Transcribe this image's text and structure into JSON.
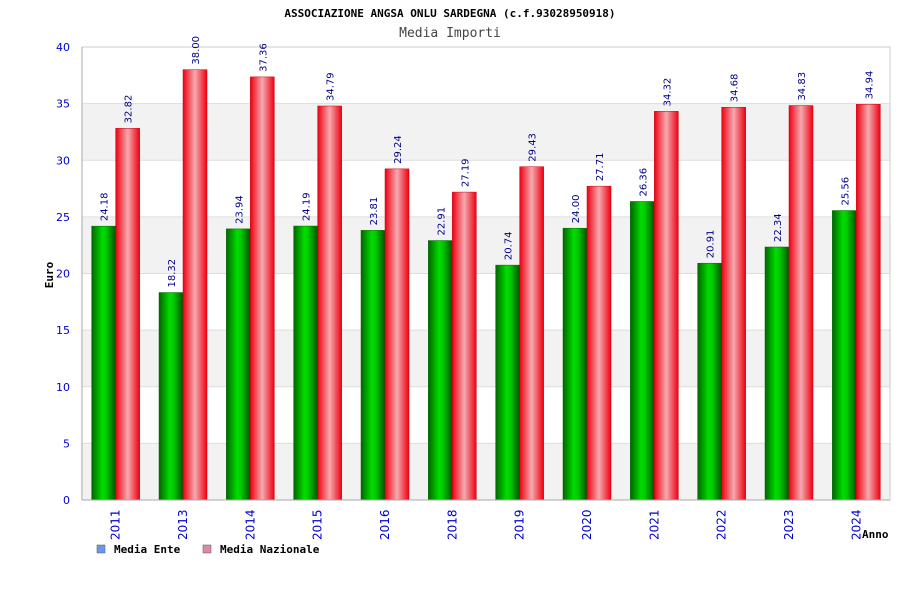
{
  "chart_data": {
    "type": "bar",
    "title": "ASSOCIAZIONE ANGSA ONLU SARDEGNA (c.f.93028950918)",
    "subtitle": "Media Importi",
    "xlabel": "Anno",
    "ylabel": "Euro",
    "ylim": [
      0,
      40
    ],
    "yticks": [
      "0",
      "5",
      "10",
      "15",
      "20",
      "25",
      "30",
      "35",
      "40"
    ],
    "grid": true,
    "legend_position": "bottom-left",
    "categories": [
      "2011",
      "2013",
      "2014",
      "2015",
      "2016",
      "2018",
      "2019",
      "2020",
      "2021",
      "2022",
      "2023",
      "2024"
    ],
    "series": [
      {
        "name": "Media Ente",
        "color": "#00a000",
        "legend_color": "#6699ee",
        "values": [
          24.18,
          18.32,
          23.94,
          24.19,
          23.81,
          22.91,
          20.74,
          24.0,
          26.36,
          20.91,
          22.34,
          25.56
        ],
        "labels": [
          "24.18",
          "18.32",
          "23.94",
          "24.19",
          "23.81",
          "22.91",
          "20.74",
          "24.00",
          "26.36",
          "20.91",
          "22.34",
          "25.56"
        ]
      },
      {
        "name": "Media Nazionale",
        "color": "#ee1122",
        "legend_color": "#dd88aa",
        "values": [
          32.82,
          38.0,
          37.36,
          34.79,
          29.24,
          27.19,
          29.43,
          27.71,
          34.32,
          34.68,
          34.83,
          34.94
        ],
        "labels": [
          "32.82",
          "38.00",
          "37.36",
          "34.79",
          "29.24",
          "27.19",
          "29.43",
          "27.71",
          "34.32",
          "34.68",
          "34.83",
          "34.94"
        ]
      }
    ],
    "colors": {
      "axis_text": "#0000cc",
      "data_label": "#000088",
      "title": "#000000",
      "band_light": "#f2f2f2",
      "grid": "#dddddd"
    }
  }
}
